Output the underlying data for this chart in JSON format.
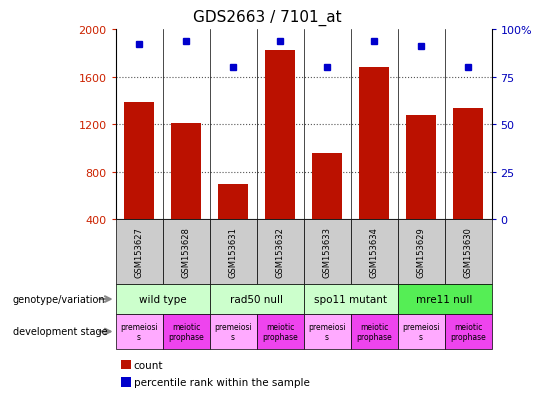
{
  "title": "GDS2663 / 7101_at",
  "samples": [
    "GSM153627",
    "GSM153628",
    "GSM153631",
    "GSM153632",
    "GSM153633",
    "GSM153634",
    "GSM153629",
    "GSM153630"
  ],
  "counts": [
    1390,
    1210,
    700,
    1820,
    960,
    1680,
    1280,
    1340
  ],
  "percentiles": [
    92,
    94,
    80,
    94,
    80,
    94,
    91,
    80
  ],
  "ylim_left": [
    400,
    2000
  ],
  "ylim_right": [
    0,
    100
  ],
  "yticks_left": [
    400,
    800,
    1200,
    1600,
    2000
  ],
  "yticks_right": [
    0,
    25,
    50,
    75,
    100
  ],
  "bar_color": "#bb1100",
  "dot_color": "#0000cc",
  "bar_bottom": 400,
  "geno_groups": [
    {
      "label": "wild type",
      "start": 0,
      "end": 2,
      "color": "#ccffcc"
    },
    {
      "label": "rad50 null",
      "start": 2,
      "end": 4,
      "color": "#ccffcc"
    },
    {
      "label": "spo11 mutant",
      "start": 4,
      "end": 6,
      "color": "#ccffcc"
    },
    {
      "label": "mre11 null",
      "start": 6,
      "end": 8,
      "color": "#55ee55"
    }
  ],
  "dev_colors": [
    "#ffaaff",
    "#ee44ee",
    "#ffaaff",
    "#ee44ee",
    "#ffaaff",
    "#ee44ee",
    "#ffaaff",
    "#ee44ee"
  ],
  "dev_labels": [
    "premeiosi\ns",
    "meiotic\nprophase",
    "premeiosi\ns",
    "meiotic\nprophase",
    "premeiosi\ns",
    "meiotic\nprophase",
    "premeiosi\ns",
    "meiotic\nprophase"
  ],
  "left_label_color": "#cc2200",
  "right_label_color": "#0000bb",
  "sample_box_color": "#cccccc",
  "ytick_right_labels": [
    "0",
    "25",
    "50",
    "75",
    "100%"
  ]
}
